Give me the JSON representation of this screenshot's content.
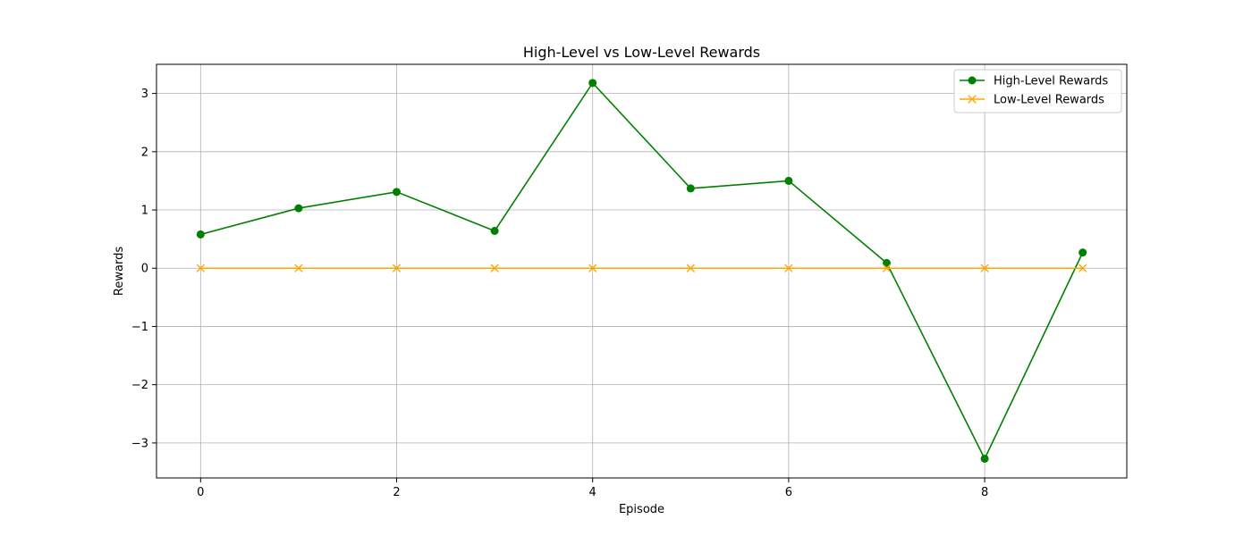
{
  "chart_data": {
    "type": "line",
    "title": "High-Level vs Low-Level Rewards",
    "xlabel": "Episode",
    "ylabel": "Rewards",
    "x": [
      0,
      1,
      2,
      3,
      4,
      5,
      6,
      7,
      8,
      9
    ],
    "xlim": [
      -0.45,
      9.45
    ],
    "ylim": [
      -3.6,
      3.5
    ],
    "xticks": [
      0,
      2,
      4,
      6,
      8
    ],
    "yticks": [
      -3,
      -2,
      -1,
      0,
      1,
      2,
      3
    ],
    "ytick_labels": [
      "−3",
      "−2",
      "−1",
      "0",
      "1",
      "2",
      "3"
    ],
    "grid": true,
    "legend_position": "top-right",
    "series": [
      {
        "name": "High-Level Rewards",
        "color": "#008000",
        "marker": "circle",
        "values": [
          0.58,
          1.03,
          1.31,
          0.64,
          3.18,
          1.37,
          1.5,
          0.09,
          -3.27,
          0.27
        ]
      },
      {
        "name": "Low-Level Rewards",
        "color": "#FFA500",
        "marker": "x",
        "values": [
          0,
          0,
          0,
          0,
          0,
          0,
          0,
          0,
          0,
          0
        ]
      }
    ]
  }
}
